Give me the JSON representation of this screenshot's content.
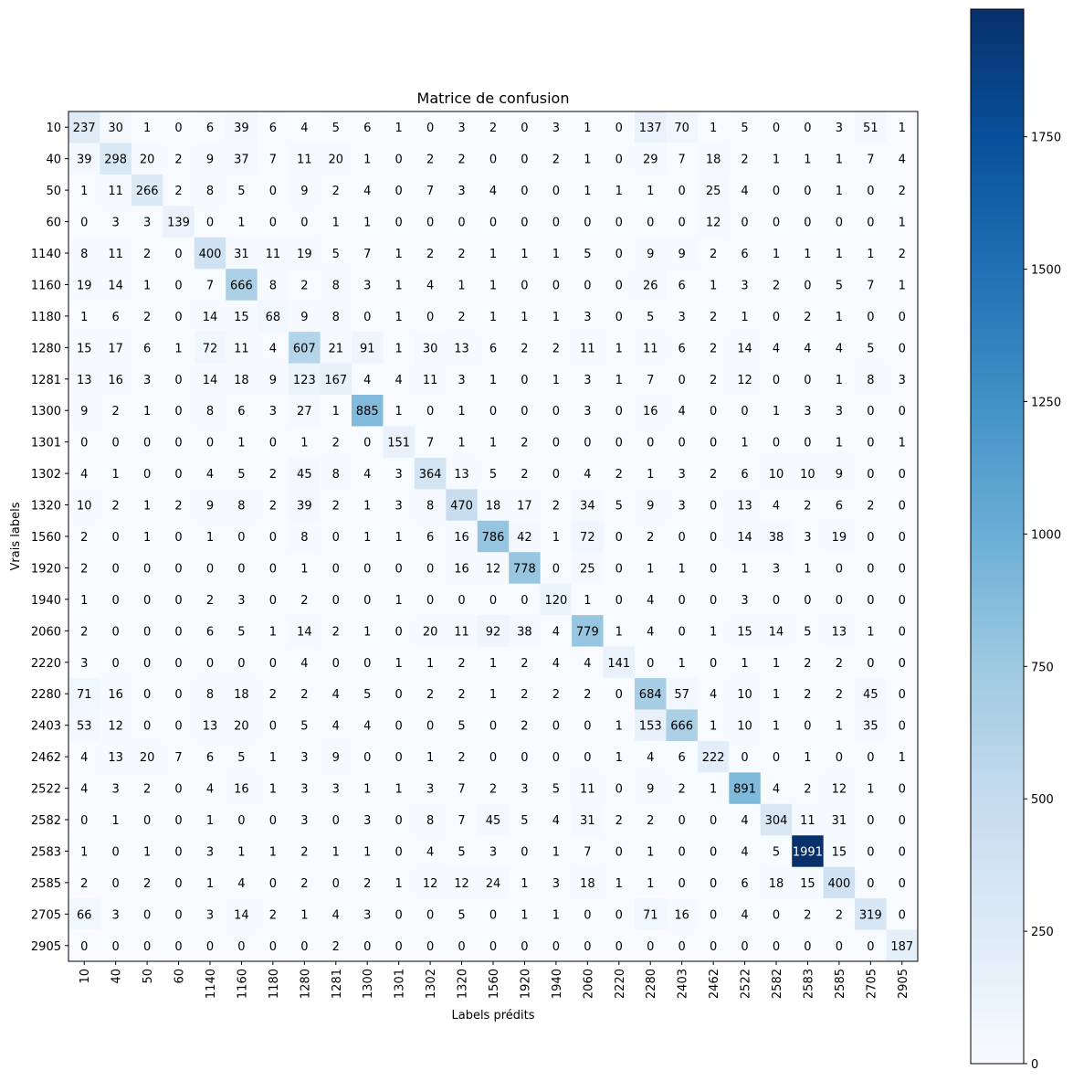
{
  "chart_data": {
    "type": "heatmap",
    "title": "Matrice de confusion",
    "xlabel": "Labels prédits",
    "ylabel": "Vrais labels",
    "labels": [
      "10",
      "40",
      "50",
      "60",
      "1140",
      "1160",
      "1180",
      "1280",
      "1281",
      "1300",
      "1301",
      "1302",
      "1320",
      "1560",
      "1920",
      "1940",
      "2060",
      "2220",
      "2280",
      "2403",
      "2462",
      "2522",
      "2582",
      "2583",
      "2585",
      "2705",
      "2905"
    ],
    "matrix": [
      [
        237,
        30,
        1,
        0,
        6,
        39,
        6,
        4,
        5,
        6,
        1,
        0,
        3,
        2,
        0,
        3,
        1,
        0,
        137,
        70,
        1,
        5,
        0,
        0,
        3,
        51,
        1
      ],
      [
        39,
        298,
        20,
        2,
        9,
        37,
        7,
        11,
        20,
        1,
        0,
        2,
        2,
        0,
        0,
        2,
        1,
        0,
        29,
        7,
        18,
        2,
        1,
        1,
        1,
        7,
        4
      ],
      [
        1,
        11,
        266,
        2,
        8,
        5,
        0,
        9,
        2,
        4,
        0,
        7,
        3,
        4,
        0,
        0,
        1,
        1,
        1,
        0,
        25,
        4,
        0,
        0,
        1,
        0,
        2
      ],
      [
        0,
        3,
        3,
        139,
        0,
        1,
        0,
        0,
        1,
        1,
        0,
        0,
        0,
        0,
        0,
        0,
        0,
        0,
        0,
        0,
        12,
        0,
        0,
        0,
        0,
        0,
        1
      ],
      [
        8,
        11,
        2,
        0,
        400,
        31,
        11,
        19,
        5,
        7,
        1,
        2,
        2,
        1,
        1,
        1,
        5,
        0,
        9,
        9,
        2,
        6,
        1,
        1,
        1,
        1,
        2
      ],
      [
        19,
        14,
        1,
        0,
        7,
        666,
        8,
        2,
        8,
        3,
        1,
        4,
        1,
        1,
        0,
        0,
        0,
        0,
        26,
        6,
        1,
        3,
        2,
        0,
        5,
        7,
        1
      ],
      [
        1,
        6,
        2,
        0,
        14,
        15,
        68,
        9,
        8,
        0,
        1,
        0,
        2,
        1,
        1,
        1,
        3,
        0,
        5,
        3,
        2,
        1,
        0,
        2,
        1,
        0,
        0
      ],
      [
        15,
        17,
        6,
        1,
        72,
        11,
        4,
        607,
        21,
        91,
        1,
        30,
        13,
        6,
        2,
        2,
        11,
        1,
        11,
        6,
        2,
        14,
        4,
        4,
        4,
        5,
        0
      ],
      [
        13,
        16,
        3,
        0,
        14,
        18,
        9,
        123,
        167,
        4,
        4,
        11,
        3,
        1,
        0,
        1,
        3,
        1,
        7,
        0,
        2,
        12,
        0,
        0,
        1,
        8,
        3
      ],
      [
        9,
        2,
        1,
        0,
        8,
        6,
        3,
        27,
        1,
        885,
        1,
        0,
        1,
        0,
        0,
        0,
        3,
        0,
        16,
        4,
        0,
        0,
        1,
        3,
        3,
        0,
        0
      ],
      [
        0,
        0,
        0,
        0,
        0,
        1,
        0,
        1,
        2,
        0,
        151,
        7,
        1,
        1,
        2,
        0,
        0,
        0,
        0,
        0,
        0,
        1,
        0,
        0,
        1,
        0,
        1
      ],
      [
        4,
        1,
        0,
        0,
        4,
        5,
        2,
        45,
        8,
        4,
        3,
        364,
        13,
        5,
        2,
        0,
        4,
        2,
        1,
        3,
        2,
        6,
        10,
        10,
        9,
        0,
        0
      ],
      [
        10,
        2,
        1,
        2,
        9,
        8,
        2,
        39,
        2,
        1,
        3,
        8,
        470,
        18,
        17,
        2,
        34,
        5,
        9,
        3,
        0,
        13,
        4,
        2,
        6,
        2,
        0
      ],
      [
        2,
        0,
        1,
        0,
        1,
        0,
        0,
        8,
        0,
        1,
        1,
        6,
        16,
        786,
        42,
        1,
        72,
        0,
        2,
        0,
        0,
        14,
        38,
        3,
        19,
        0,
        0
      ],
      [
        2,
        0,
        0,
        0,
        0,
        0,
        0,
        1,
        0,
        0,
        0,
        0,
        16,
        12,
        778,
        0,
        25,
        0,
        1,
        1,
        0,
        1,
        3,
        1,
        0,
        0,
        0
      ],
      [
        1,
        0,
        0,
        0,
        2,
        3,
        0,
        2,
        0,
        0,
        1,
        0,
        0,
        0,
        0,
        120,
        1,
        0,
        4,
        0,
        0,
        3,
        0,
        0,
        0,
        0,
        0
      ],
      [
        2,
        0,
        0,
        0,
        6,
        5,
        1,
        14,
        2,
        1,
        0,
        20,
        11,
        92,
        38,
        4,
        779,
        1,
        4,
        0,
        1,
        15,
        14,
        5,
        13,
        1,
        0
      ],
      [
        3,
        0,
        0,
        0,
        0,
        0,
        0,
        4,
        0,
        0,
        1,
        1,
        2,
        1,
        2,
        4,
        4,
        141,
        0,
        1,
        0,
        1,
        1,
        2,
        2,
        0,
        0
      ],
      [
        71,
        16,
        0,
        0,
        8,
        18,
        2,
        2,
        4,
        5,
        0,
        2,
        2,
        1,
        2,
        2,
        2,
        0,
        684,
        57,
        4,
        10,
        1,
        2,
        2,
        45,
        0
      ],
      [
        53,
        12,
        0,
        0,
        13,
        20,
        0,
        5,
        4,
        4,
        0,
        0,
        5,
        0,
        2,
        0,
        0,
        1,
        153,
        666,
        1,
        10,
        1,
        0,
        1,
        35,
        0
      ],
      [
        4,
        13,
        20,
        7,
        6,
        5,
        1,
        3,
        9,
        0,
        0,
        1,
        2,
        0,
        0,
        0,
        0,
        1,
        4,
        6,
        222,
        0,
        0,
        1,
        0,
        0,
        1
      ],
      [
        4,
        3,
        2,
        0,
        4,
        16,
        1,
        3,
        3,
        1,
        1,
        3,
        7,
        2,
        3,
        5,
        11,
        0,
        9,
        2,
        1,
        891,
        4,
        2,
        12,
        1,
        0
      ],
      [
        0,
        1,
        0,
        0,
        1,
        0,
        0,
        3,
        0,
        3,
        0,
        8,
        7,
        45,
        5,
        4,
        31,
        2,
        2,
        0,
        0,
        4,
        304,
        11,
        31,
        0,
        0
      ],
      [
        1,
        0,
        1,
        0,
        3,
        1,
        1,
        2,
        1,
        1,
        0,
        4,
        5,
        3,
        0,
        1,
        7,
        0,
        1,
        0,
        0,
        4,
        5,
        1991,
        15,
        0,
        0
      ],
      [
        2,
        0,
        2,
        0,
        1,
        4,
        0,
        2,
        0,
        2,
        1,
        12,
        12,
        24,
        1,
        3,
        18,
        1,
        1,
        0,
        0,
        6,
        18,
        15,
        400,
        0,
        0
      ],
      [
        66,
        3,
        0,
        0,
        3,
        14,
        2,
        1,
        4,
        3,
        0,
        0,
        5,
        0,
        1,
        1,
        0,
        0,
        71,
        16,
        0,
        4,
        0,
        2,
        2,
        319,
        0
      ],
      [
        0,
        0,
        0,
        0,
        0,
        0,
        0,
        0,
        2,
        0,
        0,
        0,
        0,
        0,
        0,
        0,
        0,
        0,
        0,
        0,
        0,
        0,
        0,
        0,
        0,
        0,
        187
      ]
    ],
    "colormap": "Blues",
    "vmin": 0,
    "vmax": 1991,
    "colorbar_ticks": [
      0,
      250,
      500,
      750,
      1000,
      1250,
      1500,
      1750
    ],
    "grid": false
  }
}
